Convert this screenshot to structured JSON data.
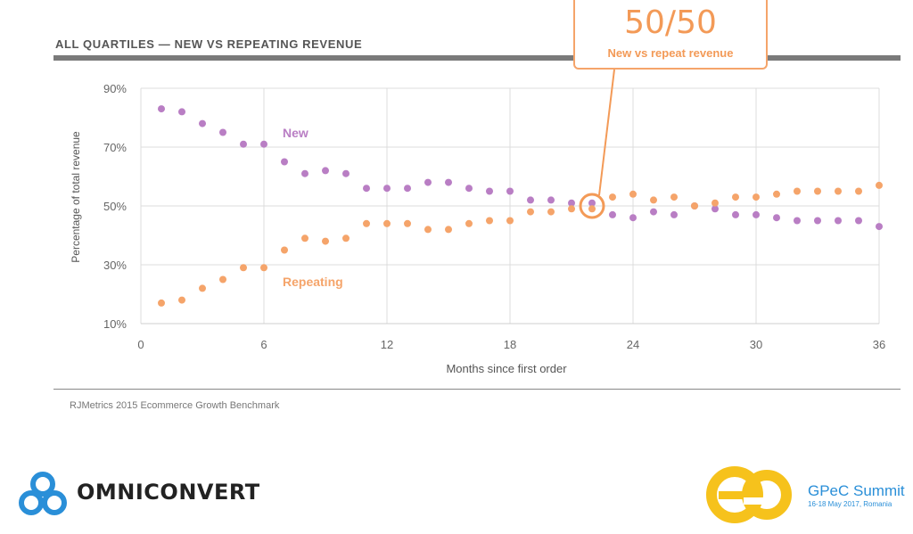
{
  "title": "ALL QUARTILES — NEW VS REPEATING REVENUE",
  "source": "RJMetrics 2015 Ecommerce Growth Benchmark",
  "callout": {
    "big": "50/50",
    "sub": "New vs repeat revenue"
  },
  "branding": {
    "omniconvert": "OMNICONVERT",
    "gpec_title": "GPeC Summit",
    "gpec_date": "16-18 May 2017, Romania"
  },
  "colors": {
    "new": "#b97ec4",
    "repeating": "#f5a46a",
    "callout": "#f39a57",
    "gpec_blue": "#2a8fd8"
  },
  "chart_data": {
    "type": "scatter",
    "title": "ALL QUARTILES — NEW VS REPEATING REVENUE",
    "xlabel": "Months since first order",
    "ylabel": "Percentage of total revenue",
    "xlim": [
      0,
      36
    ],
    "ylim": [
      10,
      90
    ],
    "xticks": [
      0,
      6,
      12,
      18,
      24,
      30,
      36
    ],
    "yticks": [
      90,
      70,
      50,
      30,
      10
    ],
    "ytick_labels": [
      "90%",
      "70%",
      "50%",
      "30%",
      "10%"
    ],
    "annotation": {
      "x": 22,
      "y": 50,
      "label": "50/50"
    },
    "series": [
      {
        "name": "New",
        "color": "#b97ec4",
        "x": [
          1,
          2,
          3,
          4,
          5,
          6,
          7,
          8,
          9,
          10,
          11,
          12,
          13,
          14,
          15,
          16,
          17,
          18,
          19,
          20,
          21,
          22,
          23,
          24,
          25,
          26,
          27,
          28,
          29,
          30,
          31,
          32,
          33,
          34,
          35,
          36
        ],
        "values": [
          83,
          82,
          78,
          75,
          71,
          71,
          65,
          61,
          62,
          61,
          56,
          56,
          56,
          58,
          58,
          56,
          55,
          55,
          52,
          52,
          51,
          51,
          47,
          46,
          48,
          47,
          50,
          49,
          47,
          47,
          46,
          45,
          45,
          45,
          45,
          43
        ]
      },
      {
        "name": "Repeating",
        "color": "#f5a46a",
        "x": [
          1,
          2,
          3,
          4,
          5,
          6,
          7,
          8,
          9,
          10,
          11,
          12,
          13,
          14,
          15,
          16,
          17,
          18,
          19,
          20,
          21,
          22,
          23,
          24,
          25,
          26,
          27,
          28,
          29,
          30,
          31,
          32,
          33,
          34,
          35,
          36
        ],
        "values": [
          17,
          18,
          22,
          25,
          29,
          29,
          35,
          39,
          38,
          39,
          44,
          44,
          44,
          42,
          42,
          44,
          45,
          45,
          48,
          48,
          49,
          49,
          53,
          54,
          52,
          53,
          50,
          51,
          53,
          53,
          54,
          55,
          55,
          55,
          55,
          57
        ]
      }
    ]
  }
}
